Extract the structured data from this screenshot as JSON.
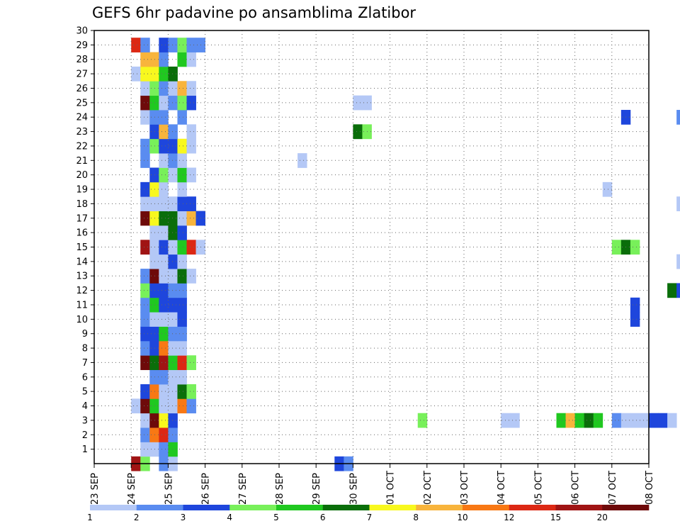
{
  "chart_data": {
    "type": "heatmap",
    "title": "GEFS 6hr padavine po ansamblima Zlatibor",
    "xlabel": "",
    "ylabel": "",
    "x_tick_labels": [
      "23 SEP",
      "24 SEP",
      "25 SEP",
      "26 SEP",
      "27 SEP",
      "28 SEP",
      "29 SEP",
      "30 SEP",
      "01 OCT",
      "02 OCT",
      "03 OCT",
      "04 OCT",
      "05 OCT",
      "06 OCT",
      "07 OCT",
      "08 OCT"
    ],
    "y_tick_labels": [
      "1",
      "2",
      "3",
      "4",
      "5",
      "6",
      "7",
      "8",
      "9",
      "10",
      "11",
      "12",
      "13",
      "14",
      "15",
      "16",
      "17",
      "18",
      "19",
      "20",
      "21",
      "22",
      "23",
      "24",
      "25",
      "26",
      "27",
      "28",
      "29",
      "30"
    ],
    "x_range_days": [
      0,
      15
    ],
    "y_range": [
      0,
      30
    ],
    "grid": true,
    "steps_per_day": 4,
    "colorbar": {
      "labels": [
        "1",
        "2",
        "3",
        "4",
        "5",
        "6",
        "7",
        "8",
        "10",
        "12",
        "15",
        "20"
      ],
      "colors": [
        "#b4c8f6",
        "#5a8cf0",
        "#1e46dc",
        "#78f05a",
        "#20c820",
        "#0a6e0a",
        "#f8f81e",
        "#f8b43c",
        "#f87814",
        "#dc2814",
        "#a01414",
        "#6e0a0a"
      ]
    },
    "cells": [
      [
        0,
        4,
        11
      ],
      [
        0,
        5,
        4
      ],
      [
        0,
        7,
        2
      ],
      [
        0,
        8,
        1
      ],
      [
        1,
        5,
        1
      ],
      [
        1,
        6,
        1
      ],
      [
        1,
        7,
        2
      ],
      [
        1,
        8,
        5
      ],
      [
        2,
        5,
        2
      ],
      [
        2,
        6,
        9
      ],
      [
        2,
        7,
        10
      ],
      [
        2,
        8,
        2
      ],
      [
        3,
        5,
        1
      ],
      [
        3,
        6,
        12
      ],
      [
        3,
        7,
        7
      ],
      [
        3,
        8,
        3
      ],
      [
        4,
        4,
        1
      ],
      [
        4,
        5,
        12
      ],
      [
        4,
        6,
        5
      ],
      [
        4,
        7,
        1
      ],
      [
        4,
        8,
        1
      ],
      [
        4,
        9,
        9
      ],
      [
        4,
        10,
        2
      ],
      [
        5,
        5,
        3
      ],
      [
        5,
        6,
        9
      ],
      [
        5,
        7,
        1
      ],
      [
        5,
        8,
        1
      ],
      [
        5,
        9,
        6
      ],
      [
        5,
        10,
        4
      ],
      [
        6,
        6,
        2
      ],
      [
        6,
        7,
        2
      ],
      [
        6,
        8,
        1
      ],
      [
        6,
        9,
        1
      ],
      [
        7,
        5,
        12
      ],
      [
        7,
        6,
        6
      ],
      [
        7,
        7,
        11
      ],
      [
        7,
        8,
        5
      ],
      [
        7,
        9,
        10
      ],
      [
        7,
        10,
        4
      ],
      [
        8,
        5,
        2
      ],
      [
        8,
        6,
        3
      ],
      [
        8,
        7,
        9
      ],
      [
        8,
        8,
        1
      ],
      [
        8,
        9,
        1
      ],
      [
        9,
        5,
        3
      ],
      [
        9,
        6,
        3
      ],
      [
        9,
        7,
        5
      ],
      [
        9,
        8,
        2
      ],
      [
        9,
        9,
        2
      ],
      [
        10,
        5,
        2
      ],
      [
        10,
        6,
        1
      ],
      [
        10,
        7,
        1
      ],
      [
        10,
        8,
        1
      ],
      [
        10,
        9,
        3
      ],
      [
        11,
        5,
        2
      ],
      [
        11,
        6,
        5
      ],
      [
        11,
        7,
        3
      ],
      [
        11,
        8,
        3
      ],
      [
        11,
        9,
        3
      ],
      [
        12,
        5,
        4
      ],
      [
        12,
        6,
        3
      ],
      [
        12,
        7,
        3
      ],
      [
        12,
        8,
        2
      ],
      [
        12,
        9,
        2
      ],
      [
        13,
        5,
        2
      ],
      [
        13,
        6,
        12
      ],
      [
        13,
        7,
        1
      ],
      [
        13,
        8,
        1
      ],
      [
        13,
        9,
        6
      ],
      [
        13,
        10,
        1
      ],
      [
        14,
        6,
        1
      ],
      [
        14,
        7,
        1
      ],
      [
        14,
        8,
        3
      ],
      [
        14,
        9,
        1
      ],
      [
        15,
        5,
        11
      ],
      [
        15,
        6,
        1
      ],
      [
        15,
        7,
        3
      ],
      [
        15,
        8,
        1
      ],
      [
        15,
        9,
        5
      ],
      [
        15,
        10,
        10
      ],
      [
        15,
        11,
        1
      ],
      [
        16,
        6,
        1
      ],
      [
        16,
        7,
        1
      ],
      [
        16,
        8,
        6
      ],
      [
        16,
        9,
        3
      ],
      [
        17,
        5,
        12
      ],
      [
        17,
        6,
        7
      ],
      [
        17,
        7,
        6
      ],
      [
        17,
        8,
        6
      ],
      [
        17,
        9,
        1
      ],
      [
        17,
        10,
        8
      ],
      [
        17,
        11,
        3
      ],
      [
        18,
        5,
        1
      ],
      [
        18,
        6,
        1
      ],
      [
        18,
        7,
        1
      ],
      [
        18,
        8,
        1
      ],
      [
        18,
        9,
        3
      ],
      [
        18,
        10,
        3
      ],
      [
        19,
        5,
        3
      ],
      [
        19,
        6,
        7
      ],
      [
        19,
        7,
        1
      ],
      [
        19,
        9,
        1
      ],
      [
        20,
        6,
        3
      ],
      [
        20,
        7,
        4
      ],
      [
        20,
        8,
        1
      ],
      [
        20,
        9,
        5
      ],
      [
        20,
        10,
        1
      ],
      [
        21,
        5,
        2
      ],
      [
        21,
        7,
        1
      ],
      [
        21,
        8,
        2
      ],
      [
        21,
        9,
        1
      ],
      [
        22,
        5,
        2
      ],
      [
        22,
        6,
        4
      ],
      [
        22,
        7,
        3
      ],
      [
        22,
        8,
        3
      ],
      [
        22,
        9,
        7
      ],
      [
        22,
        10,
        1
      ],
      [
        23,
        6,
        3
      ],
      [
        23,
        7,
        8
      ],
      [
        23,
        8,
        2
      ],
      [
        23,
        10,
        1
      ],
      [
        24,
        5,
        1
      ],
      [
        24,
        6,
        2
      ],
      [
        24,
        7,
        2
      ],
      [
        24,
        9,
        2
      ],
      [
        25,
        5,
        12
      ],
      [
        25,
        6,
        5
      ],
      [
        25,
        7,
        1
      ],
      [
        25,
        8,
        2
      ],
      [
        25,
        9,
        4
      ],
      [
        25,
        10,
        3
      ],
      [
        26,
        5,
        1
      ],
      [
        26,
        6,
        4
      ],
      [
        26,
        7,
        2
      ],
      [
        26,
        8,
        1
      ],
      [
        26,
        9,
        8
      ],
      [
        26,
        10,
        1
      ],
      [
        27,
        4,
        1
      ],
      [
        27,
        5,
        7
      ],
      [
        27,
        6,
        7
      ],
      [
        27,
        7,
        5
      ],
      [
        27,
        8,
        6
      ],
      [
        28,
        5,
        8
      ],
      [
        28,
        6,
        8
      ],
      [
        28,
        7,
        2
      ],
      [
        28,
        9,
        5
      ],
      [
        28,
        10,
        1
      ],
      [
        29,
        4,
        10
      ],
      [
        29,
        5,
        2
      ],
      [
        29,
        7,
        3
      ],
      [
        29,
        8,
        2
      ],
      [
        29,
        9,
        4
      ],
      [
        29,
        10,
        2
      ],
      [
        29,
        11,
        2
      ],
      [
        0,
        26,
        3
      ],
      [
        0,
        27,
        2
      ],
      [
        3,
        35,
        4
      ],
      [
        3,
        44,
        1
      ],
      [
        3,
        45,
        1
      ],
      [
        3,
        50,
        5
      ],
      [
        3,
        51,
        8
      ],
      [
        3,
        52,
        5
      ],
      [
        3,
        53,
        6
      ],
      [
        3,
        54,
        5
      ],
      [
        3,
        56,
        2
      ],
      [
        3,
        57,
        1
      ],
      [
        3,
        58,
        1
      ],
      [
        3,
        59,
        1
      ],
      [
        3,
        60,
        3
      ],
      [
        3,
        61,
        3
      ],
      [
        3,
        62,
        1
      ],
      [
        4,
        66,
        5
      ],
      [
        4,
        67,
        2
      ],
      [
        5,
        72,
        1
      ],
      [
        6,
        72,
        1
      ],
      [
        12,
        62,
        6
      ],
      [
        12,
        63,
        3
      ],
      [
        12,
        64,
        1
      ],
      [
        11,
        58,
        3
      ],
      [
        10,
        58,
        3
      ],
      [
        13,
        69,
        8
      ],
      [
        14,
        63,
        1
      ],
      [
        14,
        64,
        1
      ],
      [
        15,
        56,
        4
      ],
      [
        15,
        57,
        6
      ],
      [
        15,
        58,
        4
      ],
      [
        18,
        63,
        1
      ],
      [
        18,
        67,
        2
      ],
      [
        18,
        68,
        2
      ],
      [
        18,
        71,
        2
      ],
      [
        18,
        72,
        3
      ],
      [
        19,
        55,
        1
      ],
      [
        20,
        73,
        7
      ],
      [
        21,
        22,
        1
      ],
      [
        21,
        67,
        4
      ],
      [
        21,
        68,
        1
      ],
      [
        21,
        71,
        2
      ],
      [
        21,
        72,
        2
      ],
      [
        23,
        28,
        6
      ],
      [
        23,
        29,
        4
      ],
      [
        24,
        57,
        3
      ],
      [
        24,
        63,
        2
      ],
      [
        25,
        28,
        1
      ],
      [
        25,
        29,
        1
      ],
      [
        25,
        73,
        2
      ],
      [
        29,
        71,
        9
      ]
    ]
  }
}
